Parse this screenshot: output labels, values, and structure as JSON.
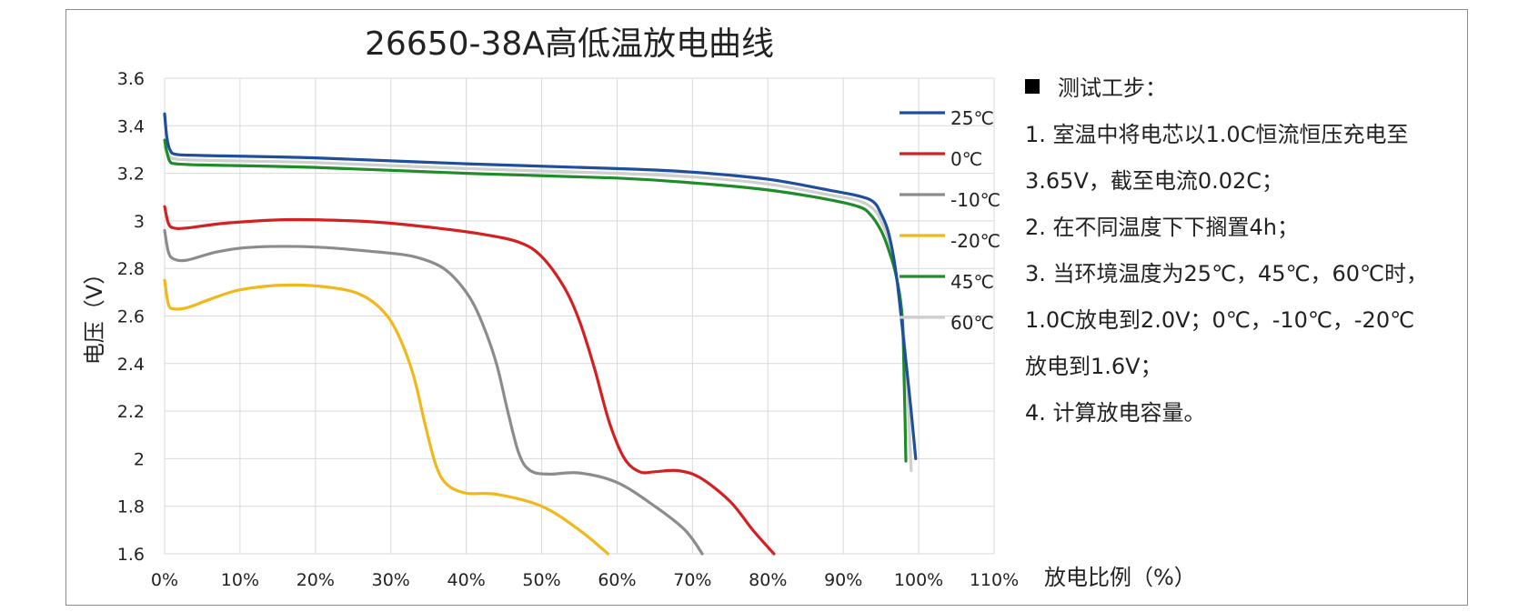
{
  "chart_data": {
    "type": "line",
    "title": "26650-38A高低温放电曲线",
    "xlabel": "放电比例（%）",
    "ylabel": "电压（V）",
    "xlim": [
      0,
      110
    ],
    "ylim": [
      1.6,
      3.6
    ],
    "x_ticks": [
      "0%",
      "10%",
      "20%",
      "30%",
      "40%",
      "50%",
      "60%",
      "70%",
      "80%",
      "90%",
      "100%",
      "110%"
    ],
    "y_ticks": [
      "1.6",
      "1.8",
      "2",
      "2.2",
      "2.4",
      "2.6",
      "2.8",
      "3",
      "3.2",
      "3.4",
      "3.6"
    ],
    "grid": true,
    "legend_position": "right",
    "series": [
      {
        "name": "25℃",
        "color": "#1f4e9c",
        "points": [
          [
            0,
            3.45
          ],
          [
            0.3,
            3.35
          ],
          [
            0.7,
            3.3
          ],
          [
            1.5,
            3.28
          ],
          [
            5,
            3.275
          ],
          [
            20,
            3.265
          ],
          [
            40,
            3.24
          ],
          [
            60,
            3.22
          ],
          [
            70,
            3.205
          ],
          [
            80,
            3.175
          ],
          [
            88,
            3.13
          ],
          [
            92,
            3.105
          ],
          [
            94,
            3.08
          ],
          [
            95,
            3.03
          ],
          [
            96,
            2.95
          ],
          [
            97,
            2.78
          ],
          [
            98,
            2.5
          ],
          [
            99,
            2.2
          ],
          [
            99.6,
            2.0
          ]
        ]
      },
      {
        "name": "0℃",
        "color": "#d42020",
        "points": [
          [
            0,
            3.06
          ],
          [
            0.5,
            2.99
          ],
          [
            1.2,
            2.97
          ],
          [
            3,
            2.97
          ],
          [
            8,
            2.99
          ],
          [
            16,
            3.005
          ],
          [
            25,
            3.0
          ],
          [
            30,
            2.99
          ],
          [
            36,
            2.97
          ],
          [
            42,
            2.945
          ],
          [
            47,
            2.91
          ],
          [
            50,
            2.85
          ],
          [
            53,
            2.72
          ],
          [
            55,
            2.58
          ],
          [
            57,
            2.38
          ],
          [
            59,
            2.15
          ],
          [
            61,
            2.0
          ],
          [
            63,
            1.945
          ],
          [
            65,
            1.945
          ],
          [
            68,
            1.95
          ],
          [
            71,
            1.92
          ],
          [
            75,
            1.82
          ],
          [
            78,
            1.7
          ],
          [
            80.8,
            1.6
          ]
        ]
      },
      {
        "name": "-10℃",
        "color": "#8c8c8c",
        "points": [
          [
            0,
            2.96
          ],
          [
            0.5,
            2.87
          ],
          [
            1.2,
            2.84
          ],
          [
            3,
            2.835
          ],
          [
            7,
            2.87
          ],
          [
            12,
            2.89
          ],
          [
            20,
            2.89
          ],
          [
            28,
            2.87
          ],
          [
            33,
            2.85
          ],
          [
            37,
            2.8
          ],
          [
            40,
            2.7
          ],
          [
            42,
            2.58
          ],
          [
            44,
            2.4
          ],
          [
            45.5,
            2.2
          ],
          [
            47,
            2.02
          ],
          [
            48.5,
            1.95
          ],
          [
            51,
            1.935
          ],
          [
            55,
            1.94
          ],
          [
            60,
            1.9
          ],
          [
            65,
            1.8
          ],
          [
            69,
            1.7
          ],
          [
            71.3,
            1.6
          ]
        ]
      },
      {
        "name": "-20℃",
        "color": "#f2b71a",
        "points": [
          [
            0,
            2.75
          ],
          [
            0.5,
            2.65
          ],
          [
            1.2,
            2.63
          ],
          [
            3,
            2.635
          ],
          [
            6,
            2.67
          ],
          [
            10,
            2.71
          ],
          [
            16,
            2.73
          ],
          [
            22,
            2.72
          ],
          [
            26,
            2.69
          ],
          [
            29,
            2.62
          ],
          [
            31,
            2.52
          ],
          [
            33,
            2.35
          ],
          [
            34.5,
            2.15
          ],
          [
            36,
            1.97
          ],
          [
            37.5,
            1.89
          ],
          [
            40,
            1.855
          ],
          [
            44,
            1.85
          ],
          [
            50,
            1.8
          ],
          [
            55,
            1.7
          ],
          [
            58.8,
            1.6
          ]
        ]
      },
      {
        "name": "45℃",
        "color": "#1e8c28",
        "points": [
          [
            0,
            3.34
          ],
          [
            0.3,
            3.29
          ],
          [
            0.7,
            3.25
          ],
          [
            1.5,
            3.24
          ],
          [
            5,
            3.235
          ],
          [
            20,
            3.225
          ],
          [
            40,
            3.2
          ],
          [
            60,
            3.18
          ],
          [
            70,
            3.16
          ],
          [
            80,
            3.13
          ],
          [
            88,
            3.09
          ],
          [
            92,
            3.06
          ],
          [
            93.5,
            3.03
          ],
          [
            95,
            2.96
          ],
          [
            96,
            2.88
          ],
          [
            97,
            2.77
          ],
          [
            97.8,
            2.6
          ],
          [
            98.1,
            2.3
          ],
          [
            98.3,
            1.99
          ]
        ]
      },
      {
        "name": "60℃",
        "color": "#cfcfcf",
        "points": [
          [
            0,
            3.31
          ],
          [
            0.3,
            3.29
          ],
          [
            0.7,
            3.27
          ],
          [
            1.5,
            3.26
          ],
          [
            5,
            3.255
          ],
          [
            20,
            3.245
          ],
          [
            40,
            3.22
          ],
          [
            60,
            3.2
          ],
          [
            70,
            3.185
          ],
          [
            80,
            3.155
          ],
          [
            88,
            3.11
          ],
          [
            92,
            3.085
          ],
          [
            94,
            3.05
          ],
          [
            95,
            3.0
          ],
          [
            96,
            2.92
          ],
          [
            97,
            2.78
          ],
          [
            97.8,
            2.6
          ],
          [
            98.5,
            2.3
          ],
          [
            99,
            1.95
          ]
        ]
      }
    ]
  },
  "notes": {
    "lines": [
      "测试工步：",
      "1. 室温中将电芯以1.0C恒流恒压充电至",
      "3.65V，截至电流0.02C；",
      "2. 在不同温度下下搁置4h；",
      "3. 当环境温度为25℃，45℃，60℃时，",
      "1.0C放电到2.0V；0℃，-10℃，-20℃",
      "放电到1.6V；",
      "4. 计算放电容量。"
    ]
  }
}
